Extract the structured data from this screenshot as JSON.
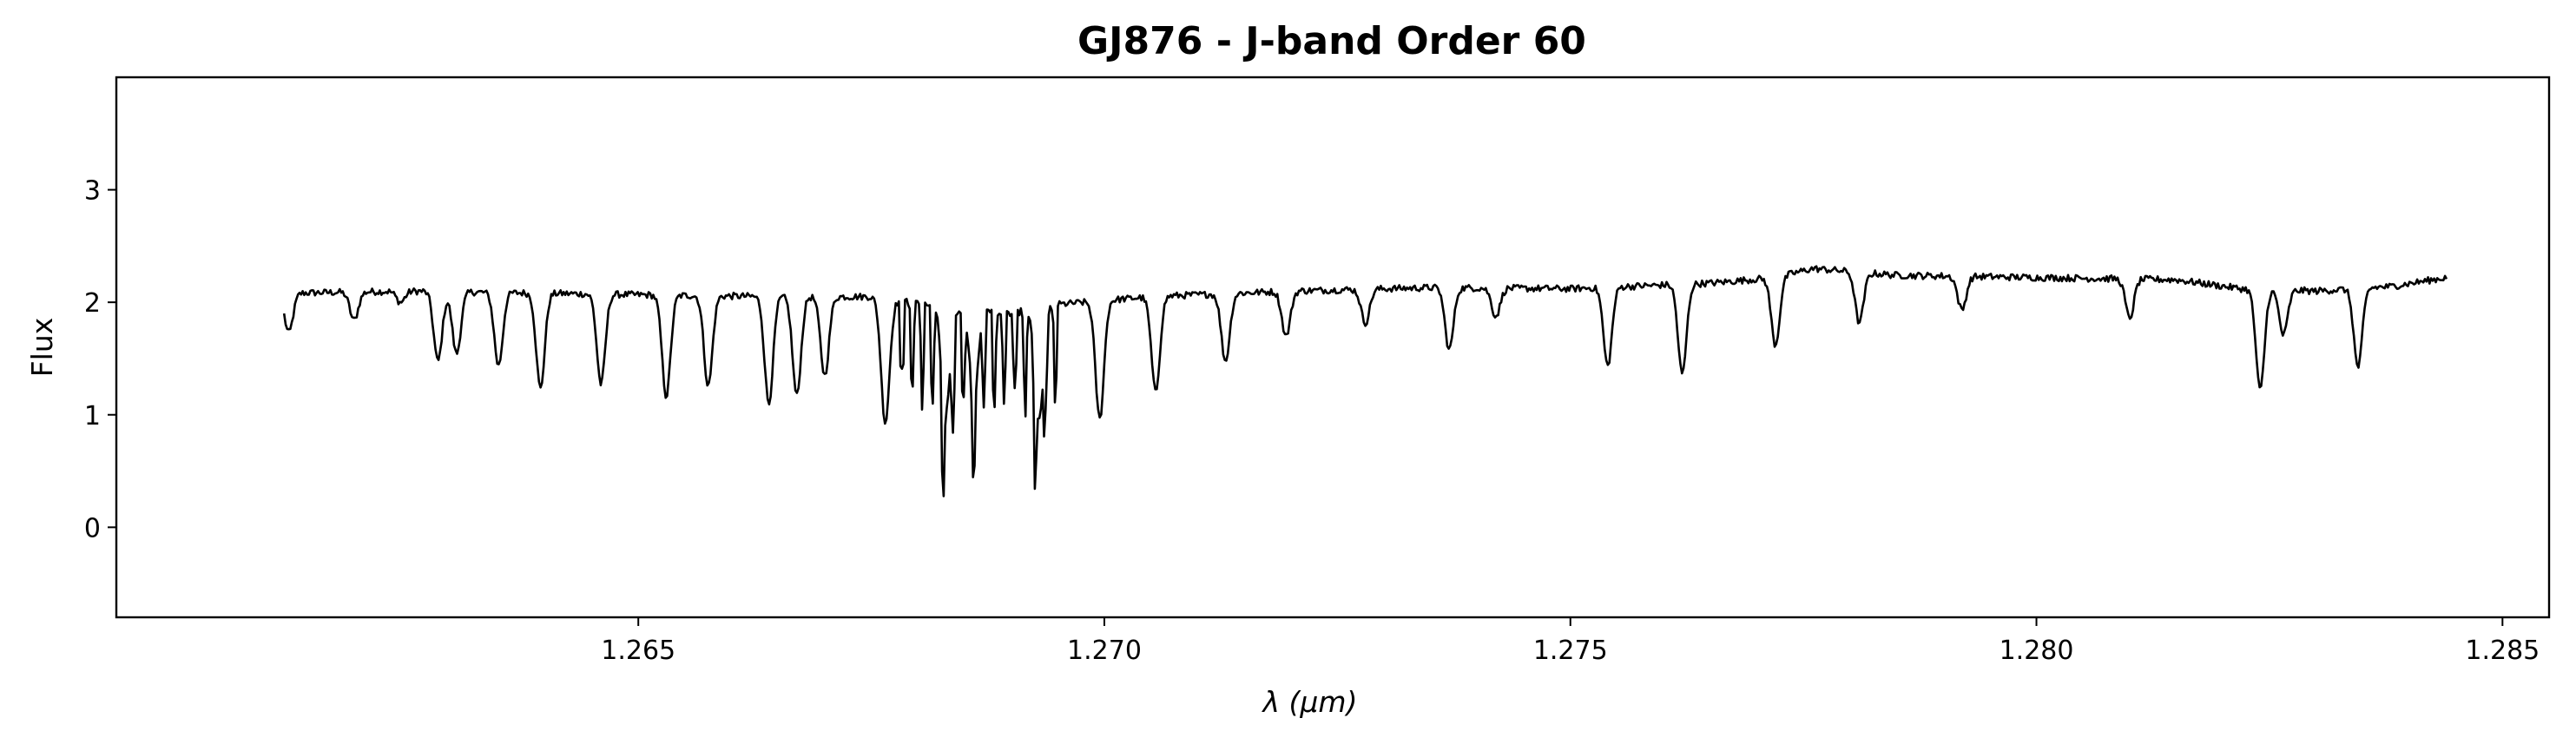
{
  "chart_data": {
    "type": "line",
    "title": "GJ876 - J-band Order 60",
    "xlabel": "λ (μm)",
    "ylabel": "Flux",
    "xlim": [
      1.2594,
      1.2855
    ],
    "ylim": [
      -0.8,
      4.0
    ],
    "xticks": [
      1.265,
      1.27,
      1.275,
      1.28,
      1.285
    ],
    "xtick_labels": [
      "1.265",
      "1.270",
      "1.275",
      "1.280",
      "1.285"
    ],
    "yticks": [
      0,
      1,
      2,
      3
    ],
    "ytick_labels": [
      "0",
      "1",
      "2",
      "3"
    ],
    "grid": false,
    "legend": "none",
    "line_color": "#000000",
    "series": [
      {
        "x_range": [
          1.2612,
          1.2844
        ],
        "continuum": [
          [
            1.2612,
            2.08
          ],
          [
            1.2625,
            2.1
          ],
          [
            1.264,
            2.08
          ],
          [
            1.2655,
            2.06
          ],
          [
            1.2665,
            2.05
          ],
          [
            1.2675,
            2.05
          ],
          [
            1.2683,
            1.95
          ],
          [
            1.269,
            1.9
          ],
          [
            1.2695,
            1.98
          ],
          [
            1.2705,
            2.05
          ],
          [
            1.272,
            2.1
          ],
          [
            1.2735,
            2.13
          ],
          [
            1.275,
            2.12
          ],
          [
            1.2765,
            2.17
          ],
          [
            1.2772,
            2.22
          ],
          [
            1.2776,
            2.3
          ],
          [
            1.2785,
            2.24
          ],
          [
            1.28,
            2.22
          ],
          [
            1.2815,
            2.2
          ],
          [
            1.2822,
            2.12
          ],
          [
            1.283,
            2.1
          ],
          [
            1.2838,
            2.14
          ],
          [
            1.2844,
            2.22
          ]
        ],
        "lines": [
          [
            1.26125,
            0.35
          ],
          [
            1.26195,
            0.25
          ],
          [
            1.26245,
            0.1
          ],
          [
            1.26285,
            0.62
          ],
          [
            1.26305,
            0.55
          ],
          [
            1.2635,
            0.65
          ],
          [
            1.26395,
            0.85
          ],
          [
            1.2646,
            0.8
          ],
          [
            1.2653,
            0.9
          ],
          [
            1.26575,
            0.8
          ],
          [
            1.2664,
            0.95
          ],
          [
            1.2667,
            0.88
          ],
          [
            1.267,
            0.7
          ],
          [
            1.26765,
            1.1
          ],
          [
            1.2683,
            0.9
          ],
          [
            1.2686,
            0.72
          ],
          [
            1.2693,
            1.0
          ],
          [
            1.26995,
            1.05
          ],
          [
            1.27055,
            0.85
          ],
          [
            1.2713,
            0.6
          ],
          [
            1.27195,
            0.4
          ],
          [
            1.2728,
            0.3
          ],
          [
            1.2737,
            0.55
          ],
          [
            1.2742,
            0.25
          ],
          [
            1.2754,
            0.7
          ],
          [
            1.2762,
            0.8
          ],
          [
            1.2772,
            0.6
          ],
          [
            1.2781,
            0.45
          ],
          [
            1.2792,
            0.3
          ],
          [
            1.281,
            0.35
          ],
          [
            1.2824,
            0.9
          ],
          [
            1.28265,
            0.4
          ],
          [
            1.28345,
            0.7
          ]
        ],
        "dense_band": [
          1.2678,
          1.2695
        ],
        "noise": 0.03
      }
    ]
  }
}
